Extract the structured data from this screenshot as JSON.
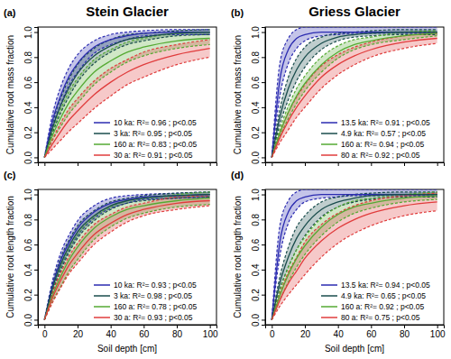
{
  "chart_data": [
    {
      "type": "line",
      "title": "Stein Glacier",
      "panel": "(a)",
      "y_label": "Cumulative root mass fraction",
      "x": [
        0,
        5,
        10,
        15,
        20,
        30,
        40,
        50,
        60,
        80,
        100
      ],
      "xlim": [
        -4,
        104
      ],
      "ylim": [
        -0.04,
        1.04
      ],
      "xticks": [
        0,
        20,
        40,
        60,
        80,
        100
      ],
      "yticks": [
        {
          "value": 0,
          "label": "0.0"
        },
        {
          "value": 0.2,
          "label": "0.2"
        },
        {
          "value": 0.4,
          "label": "0.4"
        },
        {
          "value": 0.6,
          "label": "0.6"
        },
        {
          "value": 0.8,
          "label": "0.8"
        },
        {
          "value": 1,
          "label": "1.0"
        }
      ],
      "tick_labels": "y",
      "legend": "bottom-right",
      "series": [
        {
          "name": "10 ka: R²= 0.96 ; p<0.05",
          "color": "#2b2bb0",
          "values": [
            0,
            0.3,
            0.5,
            0.65,
            0.75,
            0.88,
            0.94,
            0.97,
            0.99,
            1.0,
            1.0
          ],
          "lower": [
            0,
            0.25,
            0.43,
            0.58,
            0.68,
            0.83,
            0.9,
            0.94,
            0.97,
            0.98,
            0.98
          ],
          "upper": [
            0,
            0.35,
            0.57,
            0.72,
            0.82,
            0.93,
            0.98,
            1.0,
            1.01,
            1.02,
            1.02
          ]
        },
        {
          "name": "3 ka: R²= 0.95 ; p<0.05",
          "color": "#1a4d4d",
          "values": [
            0,
            0.24,
            0.42,
            0.56,
            0.67,
            0.81,
            0.89,
            0.94,
            0.96,
            0.99,
            1.0
          ],
          "lower": [
            0,
            0.2,
            0.36,
            0.49,
            0.6,
            0.75,
            0.84,
            0.9,
            0.93,
            0.97,
            0.98
          ],
          "upper": [
            0,
            0.28,
            0.48,
            0.63,
            0.74,
            0.87,
            0.94,
            0.98,
            0.99,
            1.01,
            1.02
          ]
        },
        {
          "name": "160 a: R²= 0.83 ; p<0.05",
          "color": "#55aa33",
          "values": [
            0,
            0.18,
            0.32,
            0.44,
            0.53,
            0.68,
            0.77,
            0.84,
            0.88,
            0.93,
            0.95
          ],
          "lower": [
            0,
            0.14,
            0.25,
            0.35,
            0.43,
            0.58,
            0.68,
            0.76,
            0.81,
            0.87,
            0.9
          ],
          "upper": [
            0,
            0.22,
            0.39,
            0.53,
            0.63,
            0.78,
            0.86,
            0.92,
            0.95,
            0.99,
            1.0
          ]
        },
        {
          "name": "30 a: R²= 0.91 ; p<0.05",
          "color": "#e03c3c",
          "values": [
            0,
            0.11,
            0.21,
            0.3,
            0.37,
            0.5,
            0.6,
            0.68,
            0.74,
            0.82,
            0.87
          ],
          "lower": [
            0,
            0.07,
            0.14,
            0.21,
            0.27,
            0.39,
            0.49,
            0.58,
            0.64,
            0.74,
            0.8
          ],
          "upper": [
            0,
            0.15,
            0.28,
            0.39,
            0.47,
            0.61,
            0.71,
            0.78,
            0.84,
            0.9,
            0.94
          ]
        }
      ]
    },
    {
      "type": "line",
      "title": "Griess Glacier",
      "panel": "(b)",
      "y_label": "Cumulative root mass fraction",
      "x": [
        0,
        5,
        10,
        15,
        20,
        30,
        40,
        50,
        60,
        80,
        100
      ],
      "xlim": [
        -4,
        104
      ],
      "ylim": [
        -0.04,
        1.04
      ],
      "xticks": [
        0,
        20,
        40,
        60,
        80,
        100
      ],
      "yticks": [
        {
          "value": 0,
          "label": "0.0"
        },
        {
          "value": 0.2,
          "label": "0.2"
        },
        {
          "value": 0.4,
          "label": "0.4"
        },
        {
          "value": 0.6,
          "label": "0.6"
        },
        {
          "value": 0.8,
          "label": "0.8"
        },
        {
          "value": 1,
          "label": "1.0"
        }
      ],
      "tick_labels": "y",
      "legend": "bottom-right",
      "series": [
        {
          "name": "13.5 ka: R²= 0.91 ; p<0.05",
          "color": "#2b2bb0",
          "values": [
            0,
            0.63,
            0.86,
            0.95,
            0.98,
            1.0,
            1.0,
            1.0,
            1.0,
            1.0,
            1.0
          ],
          "lower": [
            0,
            0.5,
            0.75,
            0.87,
            0.93,
            0.97,
            0.98,
            0.99,
            0.99,
            0.99,
            0.99
          ],
          "upper": [
            0,
            0.76,
            0.95,
            1.02,
            1.04,
            1.04,
            1.04,
            1.04,
            1.04,
            1.04,
            1.04
          ]
        },
        {
          "name": "4.9 ka: R²= 0.57 ; p<0.05",
          "color": "#1a4d4d",
          "values": [
            0,
            0.33,
            0.55,
            0.7,
            0.8,
            0.91,
            0.96,
            0.98,
            0.99,
            1.0,
            1.0
          ],
          "lower": [
            0,
            0.27,
            0.46,
            0.61,
            0.72,
            0.86,
            0.93,
            0.96,
            0.97,
            0.98,
            0.98
          ],
          "upper": [
            0,
            0.39,
            0.64,
            0.79,
            0.88,
            0.96,
            0.99,
            1.0,
            1.01,
            1.02,
            1.02
          ]
        },
        {
          "name": "160 a: R²= 0.94 ; p<0.05",
          "color": "#55aa33",
          "values": [
            0,
            0.2,
            0.36,
            0.49,
            0.59,
            0.74,
            0.84,
            0.9,
            0.93,
            0.97,
            0.99
          ],
          "lower": [
            0,
            0.17,
            0.31,
            0.43,
            0.53,
            0.68,
            0.79,
            0.86,
            0.9,
            0.94,
            0.97
          ],
          "upper": [
            0,
            0.23,
            0.41,
            0.55,
            0.65,
            0.8,
            0.89,
            0.94,
            0.96,
            1.0,
            1.01
          ]
        },
        {
          "name": "80 a: R²= 0.92 ; p<0.05",
          "color": "#e03c3c",
          "values": [
            0,
            0.16,
            0.29,
            0.4,
            0.49,
            0.64,
            0.74,
            0.81,
            0.86,
            0.92,
            0.95
          ],
          "lower": [
            0,
            0.12,
            0.22,
            0.32,
            0.4,
            0.55,
            0.66,
            0.74,
            0.8,
            0.87,
            0.91
          ],
          "upper": [
            0,
            0.2,
            0.36,
            0.48,
            0.58,
            0.73,
            0.82,
            0.88,
            0.92,
            0.97,
            0.99
          ]
        }
      ]
    },
    {
      "type": "line",
      "panel": "(c)",
      "y_label": "Cumulative root length fraction",
      "x_label": "Soil depth [cm]",
      "x": [
        0,
        5,
        10,
        15,
        20,
        30,
        40,
        50,
        60,
        80,
        100
      ],
      "xlim": [
        -4,
        104
      ],
      "ylim": [
        -0.04,
        1.04
      ],
      "xticks": [
        0,
        20,
        40,
        60,
        80,
        100
      ],
      "yticks": [
        {
          "value": 0,
          "label": "0.0"
        },
        {
          "value": 0.2,
          "label": "0.2"
        },
        {
          "value": 0.4,
          "label": "0.4"
        },
        {
          "value": 0.6,
          "label": "0.6"
        },
        {
          "value": 0.8,
          "label": "0.8"
        },
        {
          "value": 1,
          "label": "1.0"
        }
      ],
      "legend": "bottom-right",
      "series": [
        {
          "name": "10 ka: R²= 0.93 ; p<0.05",
          "color": "#2b2bb0",
          "values": [
            0,
            0.28,
            0.48,
            0.62,
            0.73,
            0.86,
            0.93,
            0.96,
            0.98,
            0.99,
            1.0
          ],
          "lower": [
            0,
            0.24,
            0.42,
            0.56,
            0.67,
            0.81,
            0.89,
            0.93,
            0.96,
            0.97,
            0.98
          ],
          "upper": [
            0,
            0.32,
            0.54,
            0.68,
            0.79,
            0.91,
            0.97,
            0.99,
            1.0,
            1.01,
            1.02
          ]
        },
        {
          "name": "3 ka: R²= 0.98 ; p<0.05",
          "color": "#1a4d4d",
          "values": [
            0,
            0.26,
            0.45,
            0.59,
            0.7,
            0.83,
            0.91,
            0.95,
            0.97,
            0.99,
            1.0
          ],
          "lower": [
            0,
            0.23,
            0.4,
            0.54,
            0.65,
            0.79,
            0.88,
            0.93,
            0.95,
            0.97,
            0.98
          ],
          "upper": [
            0,
            0.29,
            0.5,
            0.64,
            0.75,
            0.87,
            0.94,
            0.97,
            0.99,
            1.01,
            1.02
          ]
        },
        {
          "name": "160 a: R²= 0.78 ; p<0.05",
          "color": "#55aa33",
          "values": [
            0,
            0.2,
            0.35,
            0.48,
            0.58,
            0.73,
            0.82,
            0.88,
            0.91,
            0.95,
            0.97
          ],
          "lower": [
            0,
            0.15,
            0.27,
            0.39,
            0.48,
            0.64,
            0.74,
            0.81,
            0.85,
            0.9,
            0.92
          ],
          "upper": [
            0,
            0.25,
            0.43,
            0.57,
            0.68,
            0.82,
            0.9,
            0.95,
            0.97,
            1.0,
            1.02
          ]
        },
        {
          "name": "30 a: R²= 0.93 ; p<0.05",
          "color": "#e03c3c",
          "values": [
            0,
            0.18,
            0.32,
            0.44,
            0.53,
            0.68,
            0.77,
            0.84,
            0.88,
            0.93,
            0.95
          ],
          "lower": [
            0,
            0.14,
            0.26,
            0.37,
            0.45,
            0.6,
            0.7,
            0.78,
            0.83,
            0.88,
            0.91
          ],
          "upper": [
            0,
            0.22,
            0.38,
            0.51,
            0.61,
            0.76,
            0.84,
            0.9,
            0.93,
            0.98,
            0.99
          ]
        }
      ]
    },
    {
      "type": "line",
      "panel": "(d)",
      "y_label": "Cumulative root length fraction",
      "x_label": "Soil depth [cm]",
      "x": [
        0,
        5,
        10,
        15,
        20,
        30,
        40,
        50,
        60,
        80,
        100
      ],
      "xlim": [
        -4,
        104
      ],
      "ylim": [
        -0.04,
        1.04
      ],
      "xticks": [
        0,
        20,
        40,
        60,
        80,
        100
      ],
      "yticks": [
        {
          "value": 0,
          "label": "0.0"
        },
        {
          "value": 0.2,
          "label": "0.2"
        },
        {
          "value": 0.4,
          "label": "0.4"
        },
        {
          "value": 0.6,
          "label": "0.6"
        },
        {
          "value": 0.8,
          "label": "0.8"
        },
        {
          "value": 1,
          "label": "1.0"
        }
      ],
      "legend": "bottom-right",
      "series": [
        {
          "name": "13.5 ka: R²= 0.94 ; p<0.05",
          "color": "#2b2bb0",
          "values": [
            0,
            0.63,
            0.86,
            0.95,
            0.98,
            1.0,
            1.0,
            1.0,
            1.0,
            1.0,
            1.0
          ],
          "lower": [
            0,
            0.52,
            0.77,
            0.88,
            0.94,
            0.97,
            0.98,
            0.99,
            0.99,
            0.99,
            0.99
          ],
          "upper": [
            0,
            0.76,
            0.95,
            1.02,
            1.04,
            1.04,
            1.04,
            1.04,
            1.04,
            1.04,
            1.04
          ]
        },
        {
          "name": "4.9 ka: R²= 0.65 ; p<0.05",
          "color": "#1a4d4d",
          "values": [
            0,
            0.3,
            0.5,
            0.65,
            0.75,
            0.88,
            0.94,
            0.97,
            0.99,
            1.0,
            1.0
          ],
          "lower": [
            0,
            0.25,
            0.42,
            0.56,
            0.67,
            0.82,
            0.9,
            0.94,
            0.96,
            0.98,
            0.98
          ],
          "upper": [
            0,
            0.35,
            0.58,
            0.74,
            0.83,
            0.94,
            0.98,
            1.0,
            1.01,
            1.02,
            1.02
          ]
        },
        {
          "name": "160 a: R²= 0.92 ; p<0.05",
          "color": "#55aa33",
          "values": [
            0,
            0.2,
            0.36,
            0.49,
            0.59,
            0.74,
            0.84,
            0.9,
            0.93,
            0.97,
            0.99
          ],
          "lower": [
            0,
            0.16,
            0.3,
            0.42,
            0.52,
            0.67,
            0.78,
            0.85,
            0.89,
            0.94,
            0.96
          ],
          "upper": [
            0,
            0.24,
            0.42,
            0.56,
            0.66,
            0.81,
            0.9,
            0.95,
            0.97,
            1.0,
            1.02
          ]
        },
        {
          "name": "80 a: R²= 0.75 ; p<0.05",
          "color": "#e03c3c",
          "values": [
            0,
            0.16,
            0.29,
            0.39,
            0.49,
            0.63,
            0.73,
            0.8,
            0.85,
            0.91,
            0.94
          ],
          "lower": [
            0,
            0.11,
            0.2,
            0.28,
            0.36,
            0.5,
            0.61,
            0.69,
            0.75,
            0.83,
            0.87
          ],
          "upper": [
            0,
            0.21,
            0.38,
            0.5,
            0.62,
            0.76,
            0.85,
            0.91,
            0.95,
            0.99,
            1.01
          ]
        }
      ]
    }
  ]
}
